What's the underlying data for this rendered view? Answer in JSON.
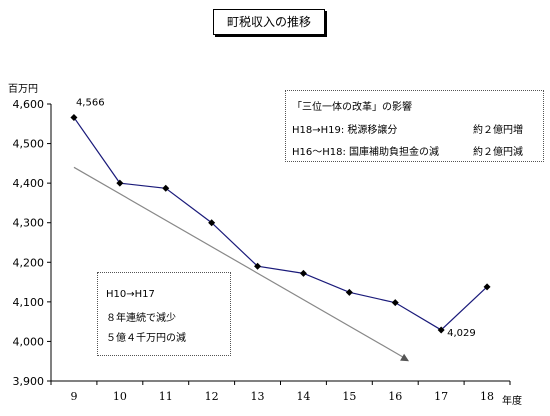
{
  "title": "町税収入の推移",
  "chart_data": {
    "type": "line",
    "title": "町税収入の推移",
    "ylabel": "百万円",
    "xlabel": "年度",
    "categories": [
      "9",
      "10",
      "11",
      "12",
      "13",
      "14",
      "15",
      "16",
      "17",
      "18"
    ],
    "values": [
      4566,
      4400,
      4387,
      4300,
      4190,
      4172,
      4124,
      4098,
      4029,
      4138
    ],
    "ylim": [
      3900,
      4600
    ],
    "yticks": [
      "3,900",
      "4,000",
      "4,100",
      "4,200",
      "4,300",
      "4,400",
      "4,500",
      "4,600"
    ],
    "data_labels": [
      {
        "category": "9",
        "text": "4,566"
      },
      {
        "category": "17",
        "text": "4,029"
      }
    ],
    "trend_line": {
      "from": {
        "x": 9,
        "y": 4440
      },
      "to": {
        "x": 16.3,
        "y": 3950
      }
    },
    "line_color": "#1a1a7a",
    "trend_color": "#888888"
  },
  "note_top": {
    "title": "「三位一体の改革」の影響",
    "row1_left": "H18→H19: 税源移譲分",
    "row1_right": "約２億円増",
    "row2_left": "H16～H18: 国庫補助負担金の減",
    "row2_right": "約２億円減"
  },
  "note_bottom": {
    "line1": "H10→H17",
    "line2": "８年連続で減少",
    "line3": "５億４千万円の減"
  }
}
